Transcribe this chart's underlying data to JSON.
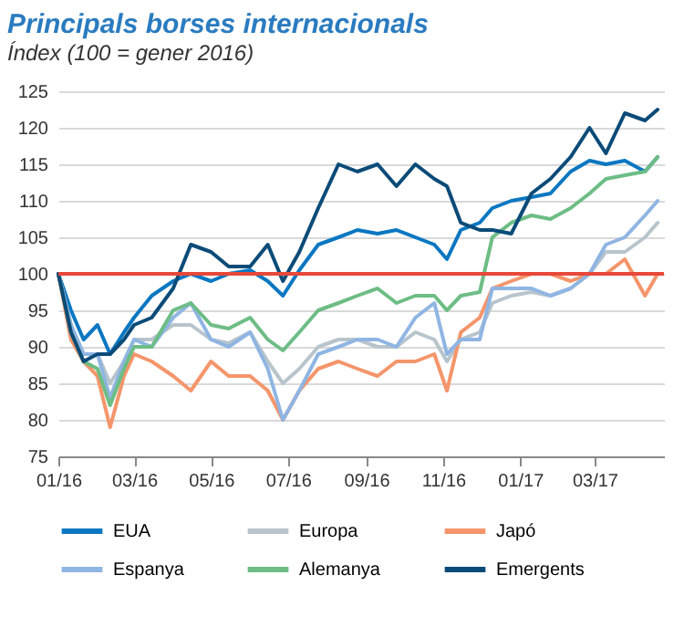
{
  "chart_data": {
    "type": "line",
    "title": "Principals borses internacionals",
    "subtitle": "Índex (100 = gener 2016)",
    "x": [
      "2016-01-01",
      "2016-01-11",
      "2016-01-21",
      "2016-02-01",
      "2016-02-11",
      "2016-02-22",
      "2016-03-01",
      "2016-03-15",
      "2016-04-01",
      "2016-04-15",
      "2016-05-01",
      "2016-05-15",
      "2016-06-01",
      "2016-06-15",
      "2016-06-27",
      "2016-07-10",
      "2016-07-25",
      "2016-08-10",
      "2016-08-25",
      "2016-09-10",
      "2016-09-25",
      "2016-10-10",
      "2016-10-25",
      "2016-11-04",
      "2016-11-15",
      "2016-11-30",
      "2016-12-10",
      "2016-12-25",
      "2017-01-10",
      "2017-01-25",
      "2017-02-10",
      "2017-02-25",
      "2017-03-10",
      "2017-03-25",
      "2017-04-10",
      "2017-04-20"
    ],
    "series": [
      {
        "name": "EUA",
        "color": "#0a77c2",
        "values": [
          100,
          95,
          91,
          93,
          89,
          92,
          94,
          97,
          99,
          100,
          99,
          100,
          100.5,
          99,
          97,
          100.5,
          104,
          105,
          106,
          105.5,
          106,
          105,
          104,
          102,
          106,
          107,
          109,
          110,
          110.5,
          111,
          114,
          115.5,
          115,
          115.5,
          114,
          116
        ]
      },
      {
        "name": "Europa",
        "color": "#b8c4cc",
        "values": [
          100,
          93,
          89,
          89,
          85,
          88,
          91,
          91,
          93,
          93,
          91,
          90.5,
          92,
          88,
          85,
          87,
          90,
          91,
          91,
          90,
          90,
          92,
          91,
          88,
          91,
          92,
          96,
          97,
          97.5,
          97,
          98,
          100,
          103,
          103,
          105,
          107
        ]
      },
      {
        "name": "Japó",
        "color": "#f4956b",
        "values": [
          100,
          91,
          88,
          86,
          79,
          86,
          89,
          88,
          86,
          84,
          88,
          86,
          86,
          84,
          80,
          84,
          87,
          88,
          87,
          86,
          88,
          88,
          89,
          84,
          92,
          94,
          98,
          99,
          100,
          100,
          99,
          100,
          100,
          102,
          97,
          100
        ]
      },
      {
        "name": "Espanya",
        "color": "#8fb5e3",
        "values": [
          100,
          93,
          89,
          89,
          83,
          88,
          91,
          90,
          94,
          96,
          91,
          90,
          92,
          87,
          80,
          84,
          89,
          90,
          91,
          91,
          90,
          94,
          96,
          89,
          91,
          91,
          98,
          98,
          98,
          97,
          98,
          100,
          104,
          105,
          108,
          110
        ]
      },
      {
        "name": "Alemanya",
        "color": "#6dbd85",
        "values": [
          100,
          92,
          88,
          87,
          82,
          87,
          90,
          90,
          95,
          96,
          93,
          92.5,
          94,
          91,
          89.5,
          92,
          95,
          96,
          97,
          98,
          96,
          97,
          97,
          95,
          97,
          97.5,
          105,
          107,
          108,
          107.5,
          109,
          111,
          113,
          113.5,
          114,
          116
        ]
      },
      {
        "name": "Emergents",
        "color": "#0b4b78",
        "values": [
          100,
          92,
          88,
          89,
          89,
          91,
          93,
          94,
          98,
          104,
          103,
          101,
          101,
          104,
          99,
          103,
          109,
          115,
          114,
          115,
          112,
          115,
          113,
          112,
          107,
          106,
          106,
          105.5,
          111,
          113,
          116,
          120,
          116.5,
          122,
          121,
          122.5
        ]
      }
    ],
    "xlim": [
      "2016-01-01",
      "2017-04-25"
    ],
    "xticks": [
      {
        "value": "2016-01-01",
        "label": "01/16"
      },
      {
        "value": "2016-03-01",
        "label": "03/16"
      },
      {
        "value": "2016-05-01",
        "label": "05/16"
      },
      {
        "value": "2016-07-01",
        "label": "07/16"
      },
      {
        "value": "2016-09-01",
        "label": "09/16"
      },
      {
        "value": "2016-11-01",
        "label": "11/16"
      },
      {
        "value": "2017-01-01",
        "label": "01/17"
      },
      {
        "value": "2017-03-01",
        "label": "03/17"
      }
    ],
    "ylim": [
      75,
      125
    ],
    "yticks": [
      75,
      80,
      85,
      90,
      95,
      100,
      105,
      110,
      115,
      120,
      125
    ],
    "ref_lines": [
      {
        "axis": "y",
        "value": 100,
        "color": "#e8483a"
      }
    ],
    "grid": "y",
    "legend": "bottom",
    "marker": "none",
    "line_style": "solid"
  }
}
